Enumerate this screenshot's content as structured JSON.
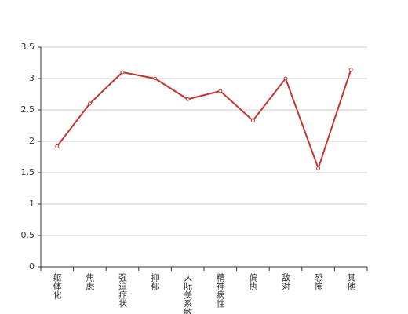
{
  "chart_data": {
    "type": "line",
    "categories": [
      "躯体化",
      "焦虑",
      "强迫症状",
      "抑郁",
      "人际关系敏感",
      "精神病性",
      "偏执",
      "敌对",
      "恐怖",
      "其他"
    ],
    "series": [
      {
        "color": "#c23531",
        "values": [
          1.92,
          2.6,
          3.1,
          3.0,
          2.67,
          2.8,
          2.33,
          3.0,
          1.57,
          3.14
        ]
      }
    ],
    "ylim": [
      0,
      3.5
    ],
    "yticks": [
      0,
      0.5,
      1,
      1.5,
      2,
      2.5,
      3,
      3.5
    ],
    "grid": true
  }
}
